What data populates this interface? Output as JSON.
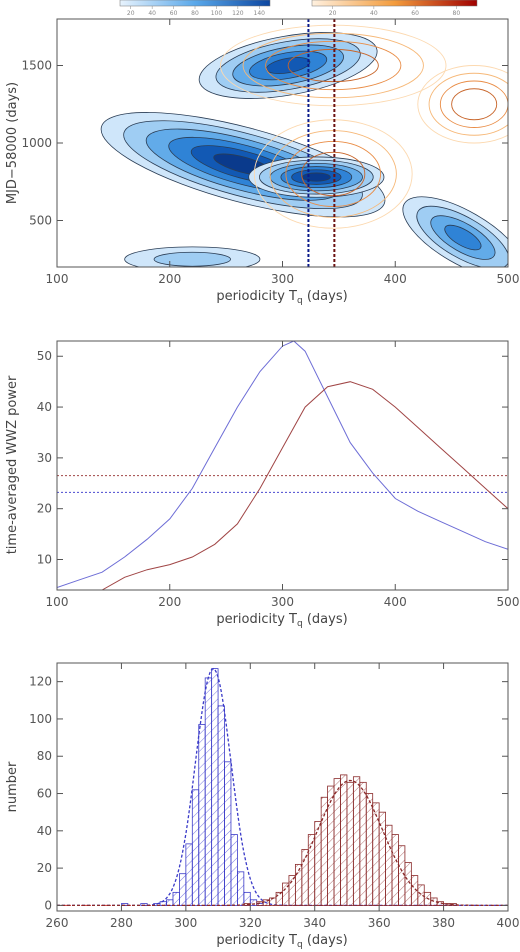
{
  "chart_data": [
    {
      "type": "heatmap",
      "xlabel": "periodicity T",
      "xlabel_sub": "q",
      "xlabel_unit": "(days)",
      "ylabel": "MJD−58000 (days)",
      "xlim": [
        100,
        500
      ],
      "ylim": [
        200,
        1800
      ],
      "xticks": [
        "100",
        "200",
        "300",
        "400",
        "500"
      ],
      "yticks": [
        "500",
        "1000",
        "1500"
      ],
      "colorbars": [
        {
          "name": "blue",
          "ticks": [
            "20",
            "40",
            "60",
            "80",
            "100",
            "120",
            "140"
          ],
          "colors": [
            "#e8f3fd",
            "#1565c0"
          ]
        },
        {
          "name": "orange",
          "ticks": [
            "20",
            "40",
            "60",
            "80"
          ],
          "colors": [
            "#fff1e0",
            "#b00000"
          ]
        }
      ],
      "blobs": [
        {
          "x": 305,
          "y": 1500,
          "rx": 80,
          "ry": 190,
          "rot": -10,
          "level": 4
        },
        {
          "x": 265,
          "y": 860,
          "rx": 130,
          "ry": 240,
          "rot": 15,
          "level": 5
        },
        {
          "x": 330,
          "y": 780,
          "rx": 60,
          "ry": 130,
          "rot": 0,
          "level": 5
        },
        {
          "x": 460,
          "y": 390,
          "rx": 60,
          "ry": 170,
          "rot": 30,
          "level": 3
        },
        {
          "x": 220,
          "y": 250,
          "rx": 60,
          "ry": 80,
          "rot": 0,
          "level": 1
        }
      ],
      "vlines": [
        {
          "x": 323,
          "color": "#0a1a8a"
        },
        {
          "x": 346,
          "color": "#6b1010"
        }
      ]
    },
    {
      "type": "line",
      "xlabel": "periodicity T",
      "xlabel_sub": "q",
      "xlabel_unit": "(days)",
      "ylabel": "time-averaged WWZ power",
      "xlim": [
        100,
        500
      ],
      "ylim": [
        4,
        53
      ],
      "xticks": [
        "100",
        "200",
        "300",
        "400",
        "500"
      ],
      "yticks": [
        "10",
        "20",
        "30",
        "40",
        "50"
      ],
      "series": [
        {
          "color": "#6d6dd6",
          "x": [
            100,
            120,
            140,
            160,
            180,
            200,
            220,
            240,
            260,
            280,
            300,
            310,
            320,
            340,
            360,
            380,
            400,
            420,
            440,
            460,
            480,
            500
          ],
          "y": [
            4.5,
            6,
            7.5,
            10.5,
            14,
            18,
            24,
            32,
            40,
            47,
            52,
            53,
            51,
            42,
            33,
            27,
            22,
            19.5,
            17.5,
            15.5,
            13.5,
            12
          ]
        },
        {
          "color": "#a04545",
          "x": [
            140,
            160,
            180,
            200,
            220,
            240,
            260,
            280,
            300,
            320,
            340,
            360,
            380,
            400,
            420,
            440,
            460,
            480,
            500
          ],
          "y": [
            4,
            6.5,
            8,
            9,
            10.5,
            13,
            17,
            24,
            32,
            40,
            44,
            45,
            43.5,
            40,
            36,
            32,
            28,
            24,
            20
          ]
        }
      ],
      "hlines": [
        {
          "y": 26.5,
          "color": "#a04545"
        },
        {
          "y": 23.2,
          "color": "#4a4ad0"
        }
      ]
    },
    {
      "type": "bar",
      "xlabel": "periodicity T",
      "xlabel_sub": "q",
      "xlabel_unit": "(days)",
      "ylabel": "number",
      "xlim": [
        260,
        400
      ],
      "ylim": [
        -3,
        130
      ],
      "xticks": [
        "260",
        "280",
        "300",
        "320",
        "340",
        "360",
        "380",
        "400"
      ],
      "yticks": [
        "0",
        "20",
        "40",
        "60",
        "80",
        "100",
        "120"
      ],
      "bin_width": 2,
      "series": [
        {
          "color": "#3a3ac8",
          "fit": {
            "mu": 308.5,
            "sigma": 5.5,
            "amp": 127
          },
          "bins": [
            280,
            282,
            284,
            286,
            288,
            290,
            292,
            294,
            296,
            298,
            300,
            302,
            304,
            306,
            308,
            310,
            312,
            314,
            316,
            318,
            320,
            322,
            324,
            326
          ],
          "values": [
            1,
            0,
            0,
            1,
            0,
            1,
            2,
            3,
            7,
            17,
            33,
            62,
            97,
            122,
            127,
            107,
            77,
            38,
            18,
            7,
            3,
            1,
            0,
            0
          ]
        },
        {
          "color": "#8a2a2a",
          "fit": {
            "mu": 351,
            "sigma": 10,
            "amp": 67
          },
          "bins": [
            318,
            320,
            322,
            324,
            326,
            328,
            330,
            332,
            334,
            336,
            338,
            340,
            342,
            344,
            346,
            348,
            350,
            352,
            354,
            356,
            358,
            360,
            362,
            364,
            366,
            368,
            370,
            372,
            374,
            376,
            378,
            380,
            382,
            384
          ],
          "values": [
            1,
            0,
            2,
            3,
            4,
            7,
            12,
            16,
            22,
            30,
            38,
            45,
            58,
            64,
            68,
            70,
            66,
            69,
            66,
            60,
            55,
            50,
            43,
            38,
            32,
            23,
            16,
            11,
            7,
            4,
            2,
            1,
            1,
            0
          ]
        }
      ]
    }
  ]
}
